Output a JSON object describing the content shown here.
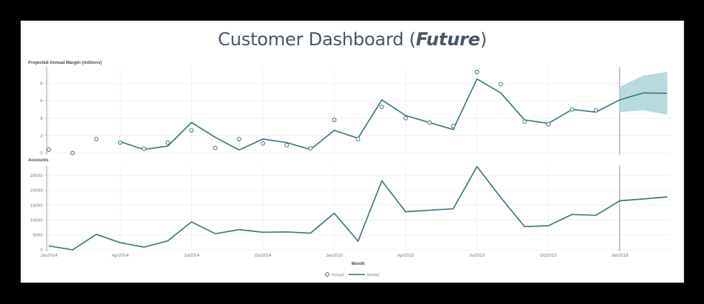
{
  "title": {
    "main": "Customer Dashboard (",
    "emphasis": "Future",
    "close": ")"
  },
  "colors": {
    "line": "#3c7a80",
    "band": "#a9d3d8",
    "grid": "#eeeeee",
    "axis": "#bbbbbb",
    "divider": "#b0b0b0",
    "title": "#4a5668"
  },
  "legend": {
    "actual_label": "Actual",
    "model_label": "Model"
  },
  "x_axis": {
    "label": "Month",
    "ticks": [
      "Jan2014",
      "Apr2014",
      "Jul2014",
      "Oct2014",
      "Jan2015",
      "Apr2015",
      "Jul2015",
      "Oct2015",
      "Jan2016"
    ]
  },
  "chart_data": [
    {
      "type": "line",
      "title": "Projected Annual Margin (millions)",
      "ylabel": "Projected Annual Margin (millions)",
      "xlabel": "Month",
      "ylim": [
        0,
        9.6
      ],
      "yticks": [
        0,
        2,
        4,
        6,
        8
      ],
      "grid": true,
      "x": [
        "Jan2014",
        "Feb2014",
        "Mar2014",
        "Apr2014",
        "May2014",
        "Jun2014",
        "Jul2014",
        "Aug2014",
        "Sep2014",
        "Oct2014",
        "Nov2014",
        "Dec2014",
        "Jan2015",
        "Feb2015",
        "Mar2015",
        "Apr2015",
        "May2015",
        "Jun2015",
        "Jul2015",
        "Aug2015",
        "Sep2015",
        "Oct2015",
        "Nov2015",
        "Dec2015",
        "Jan2016",
        "Feb2016",
        "Mar2016"
      ],
      "series": [
        {
          "name": "Actual",
          "style": "scatter-open-circle",
          "values": [
            0.4,
            0.0,
            1.6,
            1.2,
            0.5,
            1.2,
            2.6,
            0.6,
            1.6,
            1.1,
            0.9,
            0.55,
            3.8,
            1.6,
            5.3,
            4.0,
            3.5,
            3.1,
            9.3,
            7.9,
            3.6,
            3.3,
            5.0,
            4.9,
            null,
            null,
            null
          ]
        },
        {
          "name": "Model",
          "style": "line",
          "values": [
            null,
            null,
            null,
            1.3,
            0.4,
            0.8,
            3.5,
            1.8,
            0.35,
            1.6,
            1.2,
            0.4,
            2.6,
            1.7,
            6.1,
            4.3,
            3.5,
            2.7,
            8.5,
            6.9,
            3.8,
            3.4,
            5.0,
            4.7,
            6.1,
            6.9,
            6.85
          ]
        },
        {
          "name": "Forecast interval",
          "style": "band",
          "x": [
            "Jan2016",
            "Feb2016",
            "Mar2016"
          ],
          "lower": [
            4.7,
            4.9,
            4.4
          ],
          "upper": [
            7.6,
            8.9,
            9.3
          ]
        }
      ],
      "annotations": [
        "vertical divider at Jan2016 marking start of forecast"
      ]
    },
    {
      "type": "line",
      "title": "Accounts",
      "ylabel": "Accounts",
      "xlabel": "Month",
      "ylim": [
        0,
        28000
      ],
      "yticks": [
        0,
        5000,
        10000,
        15000,
        20000,
        25000
      ],
      "grid": true,
      "x": [
        "Jan2014",
        "Feb2014",
        "Mar2014",
        "Apr2014",
        "May2014",
        "Jun2014",
        "Jul2014",
        "Aug2014",
        "Sep2014",
        "Oct2014",
        "Nov2014",
        "Dec2014",
        "Jan2015",
        "Feb2015",
        "Mar2015",
        "Apr2015",
        "May2015",
        "Jun2015",
        "Jul2015",
        "Aug2015",
        "Sep2015",
        "Oct2015",
        "Nov2015",
        "Dec2015",
        "Jan2016",
        "Feb2016",
        "Mar2016"
      ],
      "series": [
        {
          "name": "Model",
          "values": [
            1300,
            0,
            5200,
            2400,
            900,
            3000,
            9400,
            5400,
            6800,
            5900,
            6000,
            5600,
            12300,
            2900,
            23200,
            12800,
            13300,
            13800,
            28000,
            17600,
            7800,
            8100,
            11900,
            11600,
            16500,
            17100,
            17800
          ]
        }
      ],
      "annotations": [
        "vertical divider at Jan2016"
      ]
    }
  ]
}
